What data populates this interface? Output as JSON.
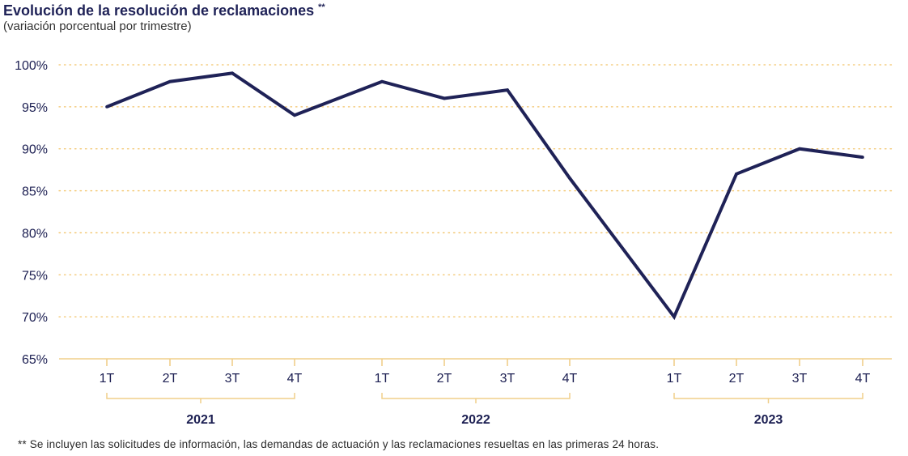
{
  "header": {
    "title": "Evolución de la resolución de reclamaciones",
    "title_mark": "**",
    "subtitle": "(variación porcentual por trimestre)"
  },
  "footnote": "** Se incluyen las solicitudes de información, las demandas de actuación y las reclamaciones resueltas en las primeras 24 horas.",
  "colors": {
    "line": "#1f2257",
    "grid": "#f2c46a",
    "axis": "#f0cf8a",
    "text": "#1c1f52"
  },
  "chart_data": {
    "type": "line",
    "title": "Evolución de la resolución de reclamaciones",
    "subtitle": "(variación porcentual por trimestre)",
    "y_tick_labels": [
      "65%",
      "70%",
      "75%",
      "80%",
      "85%",
      "90%",
      "95%",
      "100%"
    ],
    "ylim": [
      65,
      100
    ],
    "grid": true,
    "groups": [
      {
        "year": "2021",
        "quarters": [
          "1T",
          "2T",
          "3T",
          "4T"
        ]
      },
      {
        "year": "2022",
        "quarters": [
          "1T",
          "2T",
          "3T",
          "4T"
        ]
      },
      {
        "year": "2023",
        "quarters": [
          "1T",
          "2T",
          "3T",
          "4T"
        ]
      }
    ],
    "x": [
      "1T 2021",
      "2T 2021",
      "3T 2021",
      "4T 2021",
      "1T 2022",
      "2T 2022",
      "3T 2022",
      "4T 2022",
      "1T 2023",
      "2T 2023",
      "3T 2023",
      "4T 2023"
    ],
    "series": [
      {
        "values": [
          95,
          98,
          99,
          94,
          98,
          96,
          97,
          86.5,
          70,
          87,
          90,
          89
        ]
      }
    ]
  }
}
